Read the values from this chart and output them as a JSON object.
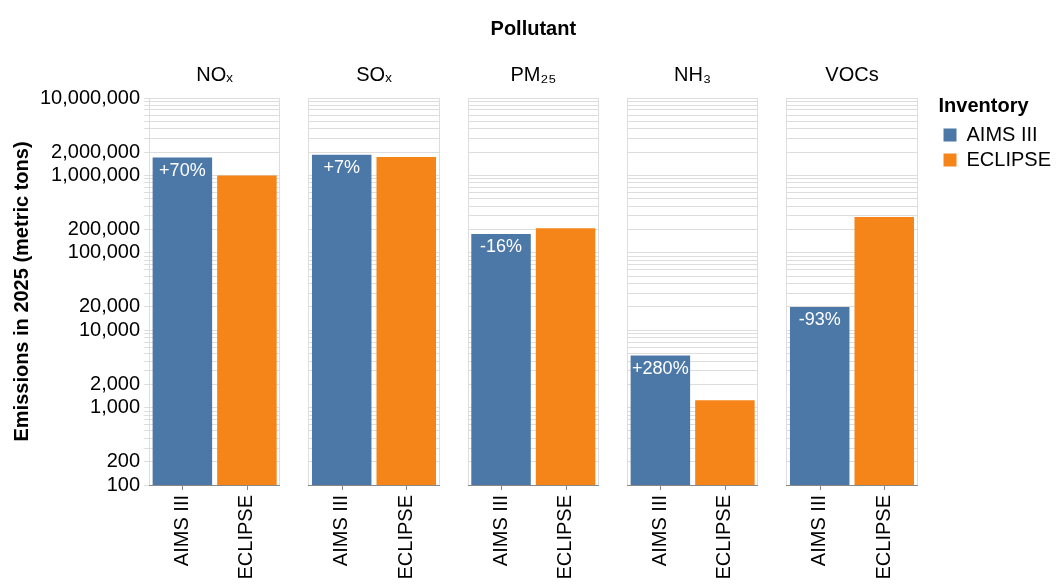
{
  "chart_data": {
    "type": "bar",
    "xlabel": "Pollutant",
    "ylabel": "Emissions in 2025 (metric tons)",
    "legend_title": "Inventory",
    "legend": "right",
    "categories": [
      "NOₓ",
      "SOₓ",
      "PM₂₅",
      "NH₃",
      "VOCs"
    ],
    "series": [
      {
        "name": "AIMS III",
        "color": "#4c78a8",
        "values": [
          1700000,
          1850000,
          175000,
          4700,
          20000
        ]
      },
      {
        "name": "ECLIPSE",
        "color": "#f58518",
        "values": [
          1000000,
          1730000,
          208000,
          1240,
          290000
        ]
      }
    ],
    "annotations": [
      {
        "text": "+70%",
        "x": "NOₓ",
        "y": 1700000
      },
      {
        "text": "+7%",
        "x": "SOₓ",
        "y": 1850000
      },
      {
        "text": "-16%",
        "x": "PM₂₅",
        "y": 175000
      },
      {
        "text": "+280%",
        "x": "NH₃",
        "y": 4700
      },
      {
        "text": "-93%",
        "x": "VOCs",
        "y": 20000
      }
    ],
    "log": true,
    "ylim": [
      100,
      10000000
    ],
    "yticks": [
      100,
      200,
      {
        "value": 300,
        "label": null
      },
      {
        "value": 400,
        "label": null
      },
      {
        "value": 500,
        "label": null
      },
      {
        "value": 600,
        "label": null
      },
      {
        "value": 700,
        "label": null
      },
      {
        "value": 800,
        "label": null
      },
      {
        "value": 900,
        "label": null
      },
      {
        "value": 1000,
        "label": "1,000"
      },
      {
        "value": 2000,
        "label": "2,000"
      },
      {
        "value": 3000,
        "label": null
      },
      {
        "value": 4000,
        "label": null
      },
      {
        "value": 5000,
        "label": null
      },
      {
        "value": 6000,
        "label": null
      },
      {
        "value": 7000,
        "label": null
      },
      {
        "value": 8000,
        "label": null
      },
      {
        "value": 9000,
        "label": null
      },
      {
        "value": 10000,
        "label": "10,000"
      },
      {
        "value": 20000,
        "label": "20,000"
      },
      {
        "value": 30000,
        "label": null
      },
      {
        "value": 40000,
        "label": null
      },
      {
        "value": 50000,
        "label": null
      },
      {
        "value": 60000,
        "label": null
      },
      {
        "value": 70000,
        "label": null
      },
      {
        "value": 80000,
        "label": null
      },
      {
        "value": 90000,
        "label": null
      },
      {
        "value": 100000,
        "label": "100,000"
      },
      {
        "value": 200000,
        "label": "200,000"
      },
      {
        "value": 300000,
        "label": null
      },
      {
        "value": 400000,
        "label": null
      },
      {
        "value": 500000,
        "label": null
      },
      {
        "value": 600000,
        "label": null
      },
      {
        "value": 700000,
        "label": null
      },
      {
        "value": 800000,
        "label": null
      },
      {
        "value": 900000,
        "label": null
      },
      {
        "value": 1000000,
        "label": "1,000,000"
      },
      {
        "value": 2000000,
        "label": "2,000,000"
      },
      {
        "value": 3000000,
        "label": null
      },
      {
        "value": 4000000,
        "label": null
      },
      {
        "value": 5000000,
        "label": null
      },
      {
        "value": 6000000,
        "label": null
      },
      {
        "value": 7000000,
        "label": null
      },
      {
        "value": 8000000,
        "label": null
      },
      {
        "value": 9000000,
        "label": null
      },
      {
        "value": 10000000,
        "label": "10,000,000"
      }
    ],
    "grid": "y"
  }
}
